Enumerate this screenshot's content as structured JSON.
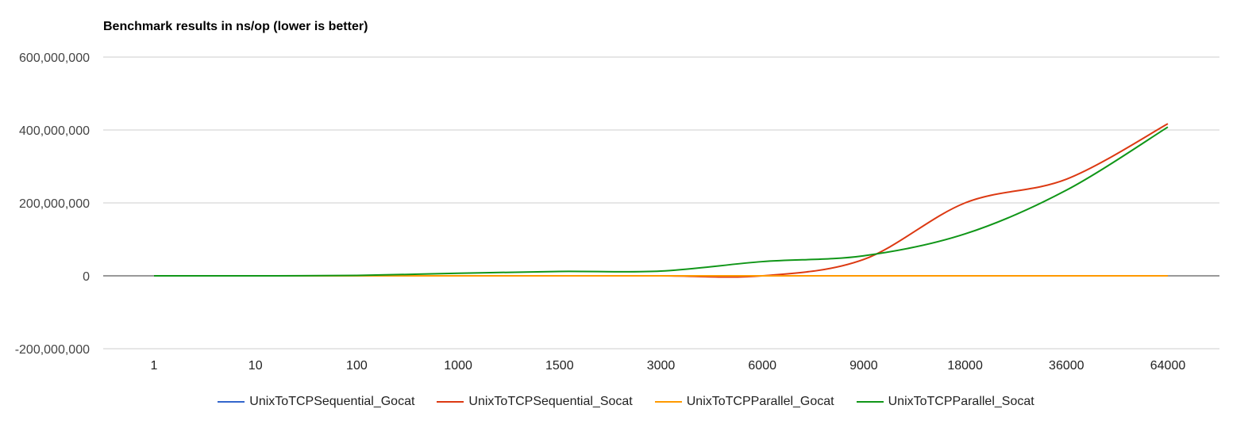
{
  "chart_data": {
    "type": "line",
    "title": "Benchmark results in ns/op (lower is better)",
    "xlabel": "",
    "ylabel": "",
    "categories": [
      "1",
      "10",
      "100",
      "1000",
      "1500",
      "3000",
      "6000",
      "9000",
      "18000",
      "36000",
      "64000"
    ],
    "ylim": [
      -200000000,
      600000000
    ],
    "yticks": [
      -200000000,
      0,
      200000000,
      400000000,
      600000000
    ],
    "ytick_labels": [
      "-200,000,000",
      "0",
      "200,000,000",
      "400,000,000",
      "600,000,000"
    ],
    "grid": true,
    "legend": "bottom",
    "series": [
      {
        "name": "UnixToTCPSequential_Gocat",
        "color": "#3366cc",
        "values": [
          0,
          0,
          0,
          0,
          0,
          0,
          0,
          0,
          0,
          0,
          0
        ]
      },
      {
        "name": "UnixToTCPSequential_Socat",
        "color": "#dc3912",
        "values": [
          0,
          0,
          0,
          0,
          0,
          0,
          0,
          45000000,
          200000000,
          265000000,
          417000000
        ]
      },
      {
        "name": "UnixToTCPParallel_Gocat",
        "color": "#ff9900",
        "values": [
          0,
          0,
          0,
          0,
          0,
          0,
          0,
          0,
          0,
          0,
          0
        ]
      },
      {
        "name": "UnixToTCPParallel_Socat",
        "color": "#109618",
        "values": [
          0,
          0,
          1000000,
          7000000,
          12000000,
          13000000,
          39000000,
          55000000,
          115000000,
          235000000,
          408000000
        ]
      }
    ]
  }
}
